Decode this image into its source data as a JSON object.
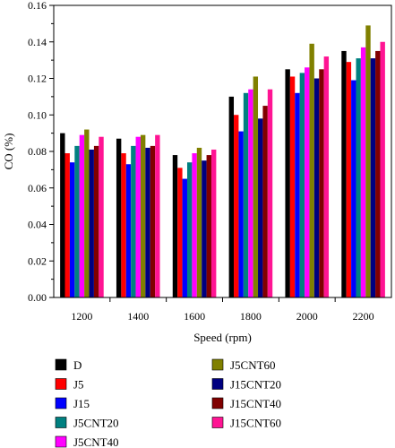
{
  "chart_data": {
    "type": "bar",
    "xlabel": "Speed (rpm)",
    "ylabel": "CO (%)",
    "ylim": [
      0,
      0.16
    ],
    "yticks": [
      "0.00",
      "0.02",
      "0.04",
      "0.06",
      "0.08",
      "0.10",
      "0.12",
      "0.14",
      "0.16"
    ],
    "categories": [
      "1200",
      "1400",
      "1600",
      "1800",
      "2000",
      "2200"
    ],
    "legend_position": "bottom",
    "series": [
      {
        "name": "D",
        "color": "#000000",
        "values": [
          0.09,
          0.087,
          0.078,
          0.11,
          0.125,
          0.135
        ]
      },
      {
        "name": "J5",
        "color": "#ff0000",
        "values": [
          0.079,
          0.079,
          0.071,
          0.1,
          0.121,
          0.129
        ]
      },
      {
        "name": "J15",
        "color": "#0000ff",
        "values": [
          0.074,
          0.073,
          0.065,
          0.091,
          0.112,
          0.119
        ]
      },
      {
        "name": "J5CNT20",
        "color": "#008080",
        "values": [
          0.083,
          0.083,
          0.074,
          0.112,
          0.123,
          0.131
        ]
      },
      {
        "name": "J5CNT40",
        "color": "#ff00ff",
        "values": [
          0.089,
          0.088,
          0.079,
          0.114,
          0.126,
          0.137
        ]
      },
      {
        "name": "J5CNT60",
        "color": "#808000",
        "values": [
          0.092,
          0.089,
          0.082,
          0.121,
          0.139,
          0.149
        ]
      },
      {
        "name": "J15CNT20",
        "color": "#000080",
        "values": [
          0.081,
          0.082,
          0.075,
          0.098,
          0.12,
          0.131
        ]
      },
      {
        "name": "J15CNT40",
        "color": "#800000",
        "values": [
          0.083,
          0.083,
          0.078,
          0.105,
          0.125,
          0.135
        ]
      },
      {
        "name": "J15CNT60",
        "color": "#ff1493",
        "values": [
          0.088,
          0.089,
          0.081,
          0.114,
          0.132,
          0.14
        ]
      }
    ]
  }
}
